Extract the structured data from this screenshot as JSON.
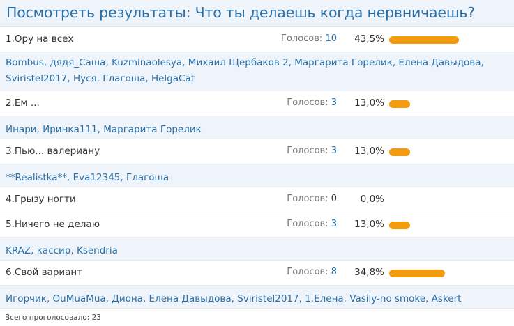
{
  "title": "Посмотреть результаты: Что ты делаешь когда нервничаешь?",
  "votes_label": "Голосов:",
  "colors": {
    "bar": "#f29b0e",
    "link": "#2a6fa8",
    "header_bg": "#eef4fa"
  },
  "answers": [
    {
      "label": "1.Ору на всех",
      "votes": "10",
      "percent_text": "43,5%",
      "percent": 43.5,
      "voters": [
        "Bombus",
        "дядя_Саша",
        "Kuzminaolesya",
        "Михаил Щербаков 2",
        "Маргарита Горелик",
        "Елена Давыдова",
        "Sviristel2017",
        "Нуся",
        "Глагоша",
        "HelgaCat"
      ]
    },
    {
      "label": "2.Ем ...",
      "votes": "3",
      "percent_text": "13,0%",
      "percent": 13.0,
      "voters": [
        "Инари",
        "Иринка111",
        "Маргарита Горелик"
      ]
    },
    {
      "label": "3.Пью... валериану",
      "votes": "3",
      "percent_text": "13,0%",
      "percent": 13.0,
      "voters": [
        "**Realistka**",
        "Eva12345",
        "Глагоша"
      ]
    },
    {
      "label": "4.Грызу ногти",
      "votes": "0",
      "percent_text": "0,0%",
      "percent": 0,
      "voters": []
    },
    {
      "label": "5.Ничего не делаю",
      "votes": "3",
      "percent_text": "13,0%",
      "percent": 13.0,
      "voters": [
        "KRAZ",
        "кассир",
        "Ksendria"
      ]
    },
    {
      "label": "6.Свой вариант",
      "votes": "8",
      "percent_text": "34,8%",
      "percent": 34.8,
      "voters": [
        "Игорчик",
        "OuMuaMua",
        "Диона",
        "Елена Давыдова",
        "Sviristel2017",
        "1.Елена",
        "Vasily-no smoke",
        "Askert"
      ]
    }
  ],
  "footer": "Всего проголосовало: 23"
}
